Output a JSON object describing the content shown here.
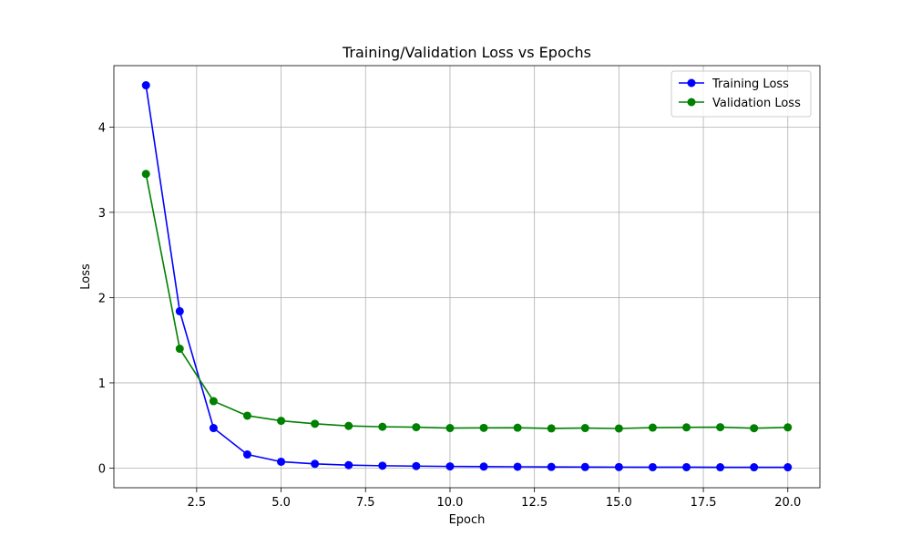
{
  "chart_data": {
    "type": "line",
    "title": "Training/Validation Loss vs Epochs",
    "xlabel": "Epoch",
    "ylabel": "Loss",
    "x": [
      1,
      2,
      3,
      4,
      5,
      6,
      7,
      8,
      9,
      10,
      11,
      12,
      13,
      14,
      15,
      16,
      17,
      18,
      19,
      20
    ],
    "xlim": [
      0.05,
      20.95
    ],
    "ylim": [
      -0.23,
      4.72
    ],
    "xticks": [
      2.5,
      5.0,
      7.5,
      10.0,
      12.5,
      15.0,
      17.5,
      20.0
    ],
    "xtick_labels": [
      "2.5",
      "5.0",
      "7.5",
      "10.0",
      "12.5",
      "15.0",
      "17.5",
      "20.0"
    ],
    "yticks": [
      0,
      1,
      2,
      3,
      4
    ],
    "ytick_labels": [
      "0",
      "1",
      "2",
      "3",
      "4"
    ],
    "grid": true,
    "legend_position": "top-right",
    "series": [
      {
        "name": "Training Loss",
        "color": "#0000ff",
        "marker": "circle",
        "values": [
          4.49,
          1.84,
          0.47,
          0.16,
          0.075,
          0.05,
          0.035,
          0.028,
          0.024,
          0.02,
          0.018,
          0.016,
          0.014,
          0.013,
          0.012,
          0.011,
          0.011,
          0.01,
          0.01,
          0.01
        ]
      },
      {
        "name": "Validation Loss",
        "color": "#008000",
        "marker": "circle",
        "values": [
          3.45,
          1.4,
          0.785,
          0.615,
          0.555,
          0.52,
          0.495,
          0.485,
          0.48,
          0.47,
          0.472,
          0.474,
          0.466,
          0.47,
          0.465,
          0.475,
          0.478,
          0.48,
          0.468,
          0.478
        ]
      }
    ]
  }
}
